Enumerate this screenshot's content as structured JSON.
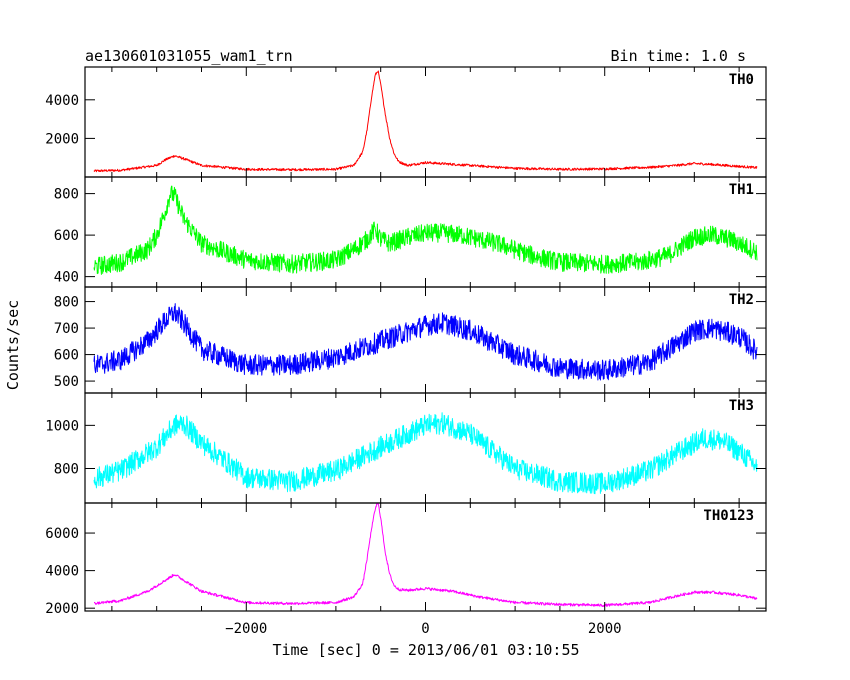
{
  "chart_data": {
    "type": "line",
    "title": "ae130601031055_wam1_trn",
    "subtitle": "Bin time: 1.0 s",
    "xlabel": "Time [sec] 0 = 2013/06/01 03:10:55",
    "ylabel": "Counts/sec",
    "xlim": [
      -3800,
      3800
    ],
    "x_ticks": [
      -2000,
      0,
      2000
    ],
    "x_tick_labels": [
      "−2000",
      "0",
      "2000"
    ],
    "panels": [
      {
        "name": "TH0",
        "color": "#ff0000",
        "ylim": [
          0,
          5700
        ],
        "y_ticks": [
          2000,
          4000
        ],
        "y_tick_labels": [
          "2000",
          "4000"
        ],
        "noise": 60,
        "x": [
          -3800,
          -3400,
          -3000,
          -2900,
          -2800,
          -2700,
          -2500,
          -2000,
          -1500,
          -1000,
          -800,
          -700,
          -650,
          -600,
          -560,
          -530,
          -500,
          -450,
          -400,
          -350,
          -300,
          -200,
          0,
          500,
          1000,
          1500,
          2000,
          2500,
          2800,
          3000,
          3200,
          3500,
          3800
        ],
        "values": [
          300,
          350,
          600,
          900,
          1100,
          950,
          600,
          400,
          380,
          400,
          600,
          1300,
          2500,
          4200,
          5300,
          5500,
          4800,
          3300,
          2000,
          1200,
          800,
          600,
          750,
          600,
          450,
          400,
          420,
          500,
          600,
          700,
          650,
          550,
          450
        ]
      },
      {
        "name": "TH1",
        "color": "#00ff00",
        "ylim": [
          350,
          880
        ],
        "y_ticks": [
          400,
          600,
          800
        ],
        "y_tick_labels": [
          "400",
          "600",
          "800"
        ],
        "noise": 45,
        "x": [
          -3800,
          -3400,
          -3100,
          -3000,
          -2900,
          -2850,
          -2800,
          -2700,
          -2500,
          -2000,
          -1500,
          -1000,
          -800,
          -650,
          -560,
          -500,
          -400,
          -200,
          0,
          200,
          400,
          800,
          1200,
          1500,
          2000,
          2400,
          2700,
          2900,
          3000,
          3200,
          3400,
          3800
        ],
        "values": [
          440,
          470,
          530,
          600,
          720,
          800,
          790,
          680,
          560,
          480,
          460,
          480,
          530,
          580,
          630,
          580,
          560,
          590,
          610,
          610,
          600,
          560,
          500,
          470,
          460,
          470,
          500,
          560,
          590,
          600,
          580,
          500
        ]
      },
      {
        "name": "TH2",
        "color": "#0000ff",
        "ylim": [
          455,
          855
        ],
        "y_ticks": [
          500,
          600,
          700,
          800
        ],
        "y_tick_labels": [
          "500",
          "600",
          "700",
          "800"
        ],
        "noise": 40,
        "x": [
          -3800,
          -3400,
          -3100,
          -2900,
          -2800,
          -2700,
          -2500,
          -2000,
          -1500,
          -1000,
          -500,
          0,
          200,
          500,
          1000,
          1500,
          2000,
          2500,
          2800,
          3000,
          3200,
          3500,
          3800
        ],
        "values": [
          550,
          580,
          650,
          730,
          760,
          720,
          620,
          560,
          560,
          590,
          650,
          710,
          720,
          690,
          600,
          550,
          540,
          570,
          640,
          690,
          700,
          670,
          580
        ]
      },
      {
        "name": "TH3",
        "color": "#00ffff",
        "ylim": [
          640,
          1150
        ],
        "y_ticks": [
          800,
          1000
        ],
        "y_tick_labels": [
          "800",
          "1000"
        ],
        "noise": 50,
        "x": [
          -3800,
          -3400,
          -3000,
          -2800,
          -2700,
          -2500,
          -2000,
          -1500,
          -1000,
          -500,
          0,
          200,
          500,
          1000,
          1500,
          2000,
          2500,
          2800,
          3100,
          3300,
          3500,
          3800
        ],
        "values": [
          740,
          790,
          900,
          1000,
          1010,
          920,
          760,
          740,
          790,
          900,
          1000,
          1010,
          960,
          800,
          740,
          730,
          790,
          870,
          940,
          930,
          880,
          770
        ]
      },
      {
        "name": "TH0123",
        "color": "#ff00ff",
        "ylim": [
          1850,
          7600
        ],
        "y_ticks": [
          2000,
          4000,
          6000
        ],
        "y_tick_labels": [
          "2000",
          "4000",
          "6000"
        ],
        "noise": 70,
        "x": [
          -3800,
          -3400,
          -3100,
          -2900,
          -2800,
          -2700,
          -2500,
          -2000,
          -1500,
          -1000,
          -800,
          -700,
          -650,
          -600,
          -560,
          -530,
          -500,
          -450,
          -400,
          -350,
          -300,
          -200,
          0,
          300,
          600,
          1000,
          1500,
          2000,
          2500,
          2800,
          3000,
          3200,
          3500,
          3800
        ],
        "values": [
          2200,
          2400,
          2900,
          3500,
          3800,
          3500,
          2900,
          2300,
          2250,
          2300,
          2600,
          3300,
          4700,
          6300,
          7300,
          7700,
          6800,
          5000,
          3800,
          3200,
          3000,
          2950,
          3050,
          2900,
          2600,
          2300,
          2200,
          2150,
          2300,
          2650,
          2850,
          2850,
          2700,
          2400
        ]
      }
    ]
  }
}
